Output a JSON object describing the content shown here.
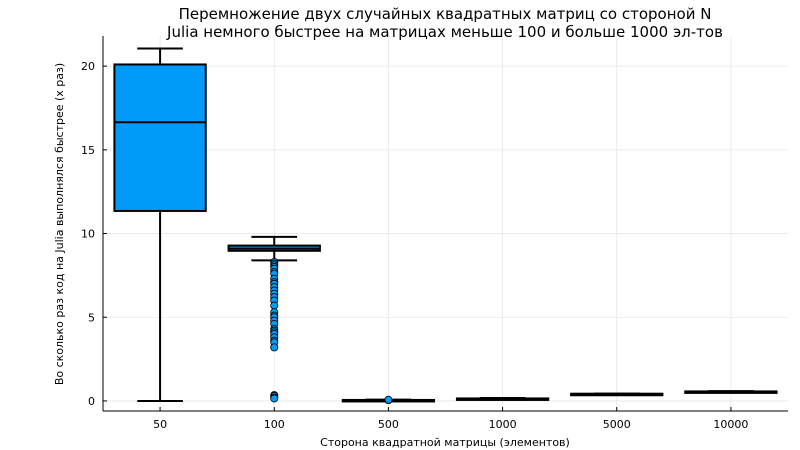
{
  "chart_data": {
    "type": "box",
    "title_line1": "Перемножение двух случайных квадратных матриц со стороной N",
    "title_line2": "Julia немного быстрее на матрицах меньше 100 и больше 1000 эл-тов",
    "xlabel": "Сторона квадратной матрицы (элементов)",
    "ylabel": "Во сколько раз код на Julia выполнялся быстрее (x раз)",
    "categories": [
      "50",
      "100",
      "500",
      "1000",
      "5000",
      "10000"
    ],
    "yticks": [
      0,
      5,
      10,
      15,
      20
    ],
    "ylim": [
      -0.6,
      21.8
    ],
    "grid": true,
    "legend": "none",
    "fill_color": "#009af9",
    "boxes": [
      {
        "category": "50",
        "whisker_low": 0.0,
        "q1": 11.35,
        "median": 16.65,
        "q3": 20.1,
        "whisker_high": 21.05,
        "outliers": []
      },
      {
        "category": "100",
        "whisker_low": 8.4,
        "q1": 8.97,
        "median": 9.1,
        "q3": 9.28,
        "whisker_high": 9.8,
        "outliers": [
          8.3,
          8.2,
          8.1,
          8.0,
          7.9,
          7.7,
          7.6,
          7.3,
          7.1,
          7.0,
          6.8,
          6.6,
          6.4,
          6.2,
          6.0,
          5.7,
          5.3,
          5.1,
          5.0,
          4.8,
          4.6,
          4.3,
          4.2,
          4.1,
          4.0,
          3.8,
          3.6,
          3.5,
          3.2,
          0.35,
          0.3,
          0.2,
          0.15
        ]
      },
      {
        "category": "500",
        "whisker_low": 0.0,
        "q1": 0.02,
        "median": 0.04,
        "q3": 0.06,
        "whisker_high": 0.08,
        "outliers": [
          0.05,
          0.07
        ]
      },
      {
        "category": "1000",
        "whisker_low": 0.08,
        "q1": 0.1,
        "median": 0.12,
        "q3": 0.15,
        "whisker_high": 0.18,
        "outliers": []
      },
      {
        "category": "5000",
        "whisker_low": 0.4,
        "q1": 0.41,
        "median": 0.42,
        "q3": 0.43,
        "whisker_high": 0.44,
        "outliers": []
      },
      {
        "category": "10000",
        "whisker_low": 0.52,
        "q1": 0.54,
        "median": 0.56,
        "q3": 0.57,
        "whisker_high": 0.59,
        "outliers": []
      }
    ]
  }
}
